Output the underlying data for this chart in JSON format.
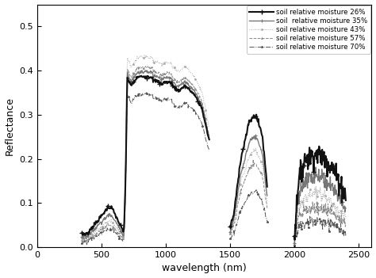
{
  "xlabel": "wavelength (nm)",
  "ylabel": "Reflectance",
  "xlim": [
    0,
    2600
  ],
  "ylim": [
    0.0,
    0.55
  ],
  "xticks": [
    0,
    500,
    1000,
    1500,
    2000,
    2500
  ],
  "yticks": [
    0.0,
    0.1,
    0.2,
    0.3,
    0.4,
    0.5
  ],
  "legend_labels": [
    "soil relative moisture 26%",
    "soil  relative moisture 35%",
    "soil relative moisture 43%",
    "soil relative moisture 57%",
    "soil relative moisture 70%"
  ],
  "background_color": "#ffffff",
  "figsize": [
    4.74,
    3.51
  ],
  "dpi": 100
}
